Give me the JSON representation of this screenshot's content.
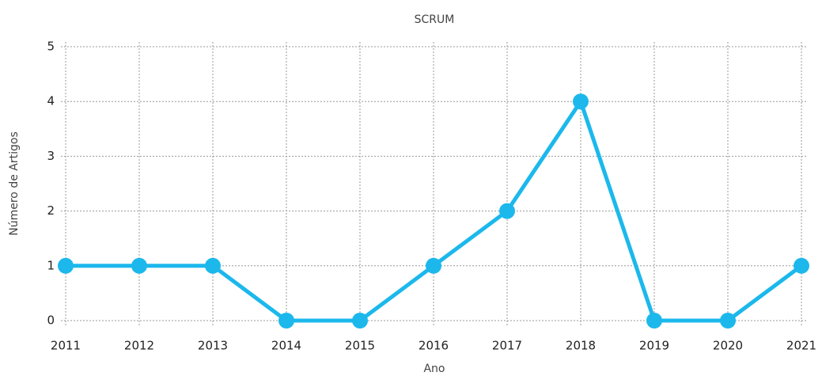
{
  "chart_data": {
    "type": "line",
    "title": "SCRUM",
    "x_label": "Ano",
    "y_label": "Número de Artigos",
    "x": [
      2011,
      2012,
      2013,
      2014,
      2015,
      2016,
      2017,
      2018,
      2019,
      2020,
      2021
    ],
    "values": [
      1,
      1,
      1,
      0,
      0,
      1,
      2,
      4,
      0,
      0,
      1
    ],
    "color": "#1cb8ec",
    "xlim": [
      2011,
      2021
    ],
    "xticks": [
      2011,
      2012,
      2013,
      2014,
      2015,
      2016,
      2017,
      2018,
      2019,
      2020,
      2021
    ],
    "ylim": [
      0,
      5
    ],
    "yticks": [
      0,
      1,
      2,
      3,
      4,
      5
    ],
    "grid": true
  }
}
